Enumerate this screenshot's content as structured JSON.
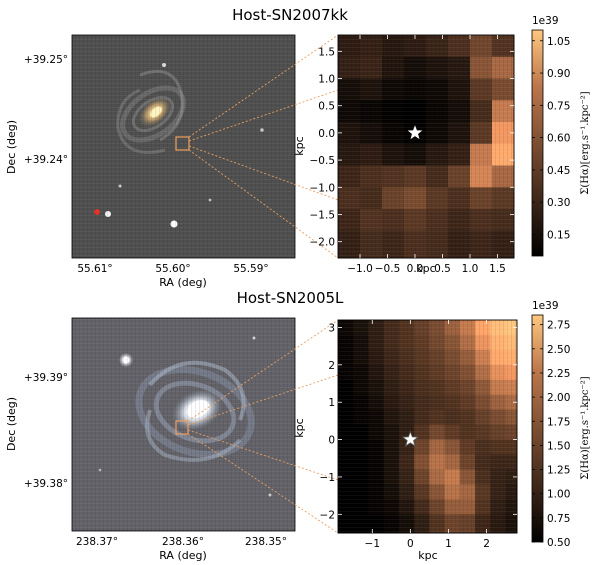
{
  "panels": [
    {
      "title": "Host-SN2007kk",
      "sky_image": {
        "xlabel": "RA (deg)",
        "ylabel": "Dec (deg)",
        "xticks": [
          "55.61°",
          "55.60°",
          "55.59°"
        ],
        "yticks": [
          "+39.25°",
          "+39.24°"
        ]
      },
      "map": {
        "xlabel": "kpc",
        "ylabel": "kpc",
        "xticks": [
          "−1.0",
          "−0.5",
          "0.0",
          "0.5",
          "1.0",
          "1.5"
        ],
        "yticks": [
          "1.5",
          "1.0",
          "0.5",
          "0.0",
          "−0.5",
          "−1.0",
          "−1.5",
          "−2.0"
        ]
      },
      "colorbar": {
        "label": "Σ(Hα)[erg.s⁻¹.kpc⁻²]",
        "offset_label": "1e39",
        "ticks": [
          "1.05",
          "0.90",
          "0.75",
          "0.60",
          "0.45",
          "0.30",
          "0.15"
        ]
      }
    },
    {
      "title": "Host-SN2005L",
      "sky_image": {
        "xlabel": "RA (deg)",
        "ylabel": "Dec (deg)",
        "xticks": [
          "238.37°",
          "238.36°",
          "238.35°"
        ],
        "yticks": [
          "+39.39°",
          "+39.38°"
        ]
      },
      "map": {
        "xlabel": "kpc",
        "ylabel": "kpc",
        "xticks": [
          "−1",
          "0",
          "1",
          "2"
        ],
        "yticks": [
          "3",
          "2",
          "1",
          "0",
          "−1",
          "−2"
        ]
      },
      "colorbar": {
        "label": "Σ(Hα)[erg.s⁻¹.kpc⁻²]",
        "offset_label": "1e39",
        "ticks": [
          "2.75",
          "2.50",
          "2.25",
          "2.00",
          "1.75",
          "1.50",
          "1.25",
          "1.00",
          "0.75",
          "0.50"
        ]
      }
    }
  ],
  "chart_data": [
    {
      "type": "heatmap",
      "title": "Host-SN2007kk",
      "xlabel": "kpc",
      "ylabel": "kpc",
      "xlim": [
        -1.4,
        1.8
      ],
      "ylim": [
        -2.3,
        1.8
      ],
      "sn_position": [
        0.0,
        0.0
      ],
      "colorbar": {
        "min": 0.05,
        "max": 1.1,
        "scale": "1e39"
      },
      "grid": {
        "x_edges": [
          -1.4,
          -1.0,
          -0.6,
          -0.2,
          0.2,
          0.6,
          1.0,
          1.4,
          1.8
        ],
        "y_edges": [
          1.8,
          1.4,
          1.0,
          0.6,
          0.2,
          -0.2,
          -0.6,
          -1.0,
          -1.4,
          -1.8,
          -2.3
        ],
        "values": [
          [
            0.2,
            0.22,
            0.18,
            0.2,
            0.24,
            0.3,
            0.42,
            0.32
          ],
          [
            0.22,
            0.24,
            0.16,
            0.12,
            0.15,
            0.18,
            0.5,
            0.6
          ],
          [
            0.12,
            0.15,
            0.1,
            0.08,
            0.1,
            0.15,
            0.35,
            0.45
          ],
          [
            0.1,
            0.08,
            0.06,
            0.05,
            0.08,
            0.12,
            0.28,
            0.7
          ],
          [
            0.15,
            0.12,
            0.08,
            0.06,
            0.1,
            0.15,
            0.35,
            0.85
          ],
          [
            0.18,
            0.2,
            0.15,
            0.12,
            0.18,
            0.22,
            0.7,
            0.95
          ],
          [
            0.25,
            0.3,
            0.32,
            0.35,
            0.28,
            0.4,
            0.75,
            0.6
          ],
          [
            0.3,
            0.28,
            0.4,
            0.45,
            0.35,
            0.3,
            0.4,
            0.35
          ],
          [
            0.25,
            0.32,
            0.3,
            0.35,
            0.3,
            0.25,
            0.3,
            0.28
          ],
          [
            0.22,
            0.28,
            0.25,
            0.3,
            0.28,
            0.22,
            0.25,
            0.22
          ]
        ]
      }
    },
    {
      "type": "heatmap",
      "title": "Host-SN2005L",
      "xlabel": "kpc",
      "ylabel": "kpc",
      "xlim": [
        -1.9,
        2.8
      ],
      "ylim": [
        -2.5,
        3.2
      ],
      "sn_position": [
        0.0,
        0.0
      ],
      "colorbar": {
        "min": 0.5,
        "max": 2.85,
        "scale": "1e39"
      },
      "grid": {
        "x_edges": [
          -1.9,
          -1.5,
          -1.1,
          -0.7,
          -0.3,
          0.1,
          0.5,
          0.9,
          1.3,
          1.7,
          2.1,
          2.5,
          2.8
        ],
        "y_edges": [
          3.2,
          2.8,
          2.4,
          2.0,
          1.6,
          1.2,
          0.8,
          0.4,
          0.0,
          -0.4,
          -0.8,
          -1.2,
          -1.6,
          -2.0,
          -2.5
        ],
        "values": [
          [
            0.6,
            0.7,
            0.85,
            1.0,
            1.1,
            1.25,
            1.4,
            1.65,
            1.95,
            2.45,
            2.75,
            2.85
          ],
          [
            0.55,
            0.65,
            0.85,
            1.0,
            1.1,
            1.2,
            1.35,
            1.5,
            1.8,
            2.25,
            2.6,
            2.7
          ],
          [
            0.55,
            0.65,
            0.8,
            0.95,
            1.05,
            1.15,
            1.25,
            1.4,
            1.6,
            2.0,
            2.5,
            2.55
          ],
          [
            0.55,
            0.6,
            0.75,
            0.9,
            1.0,
            1.1,
            1.2,
            1.3,
            1.45,
            1.8,
            2.2,
            2.3
          ],
          [
            0.5,
            0.6,
            0.7,
            0.85,
            0.95,
            1.05,
            1.1,
            1.2,
            1.3,
            1.55,
            1.95,
            2.0
          ],
          [
            0.5,
            0.55,
            0.65,
            0.8,
            0.9,
            1.0,
            1.05,
            1.1,
            1.2,
            1.4,
            1.65,
            1.75
          ],
          [
            0.5,
            0.55,
            0.6,
            0.75,
            0.85,
            1.0,
            1.1,
            1.05,
            1.1,
            1.25,
            1.4,
            1.5
          ],
          [
            0.5,
            0.5,
            0.6,
            0.7,
            0.85,
            1.1,
            1.35,
            1.2,
            1.1,
            1.15,
            1.25,
            1.3
          ],
          [
            0.5,
            0.5,
            0.55,
            0.7,
            0.9,
            1.3,
            1.7,
            1.5,
            1.2,
            1.05,
            1.1,
            1.1
          ],
          [
            0.5,
            0.5,
            0.55,
            0.7,
            0.95,
            1.45,
            1.85,
            1.7,
            1.3,
            1.0,
            0.95,
            0.95
          ],
          [
            0.5,
            0.5,
            0.55,
            0.7,
            0.9,
            1.3,
            1.75,
            1.95,
            1.5,
            1.05,
            0.9,
            0.85
          ],
          [
            0.5,
            0.5,
            0.55,
            0.65,
            0.85,
            1.15,
            1.5,
            1.85,
            1.7,
            1.15,
            0.9,
            0.8
          ],
          [
            0.5,
            0.5,
            0.55,
            0.6,
            0.75,
            1.0,
            1.3,
            1.6,
            1.6,
            1.1,
            0.85,
            0.75
          ],
          [
            0.5,
            0.5,
            0.5,
            0.55,
            0.65,
            0.85,
            1.1,
            1.3,
            1.25,
            0.95,
            0.8,
            0.7
          ]
        ]
      }
    }
  ]
}
